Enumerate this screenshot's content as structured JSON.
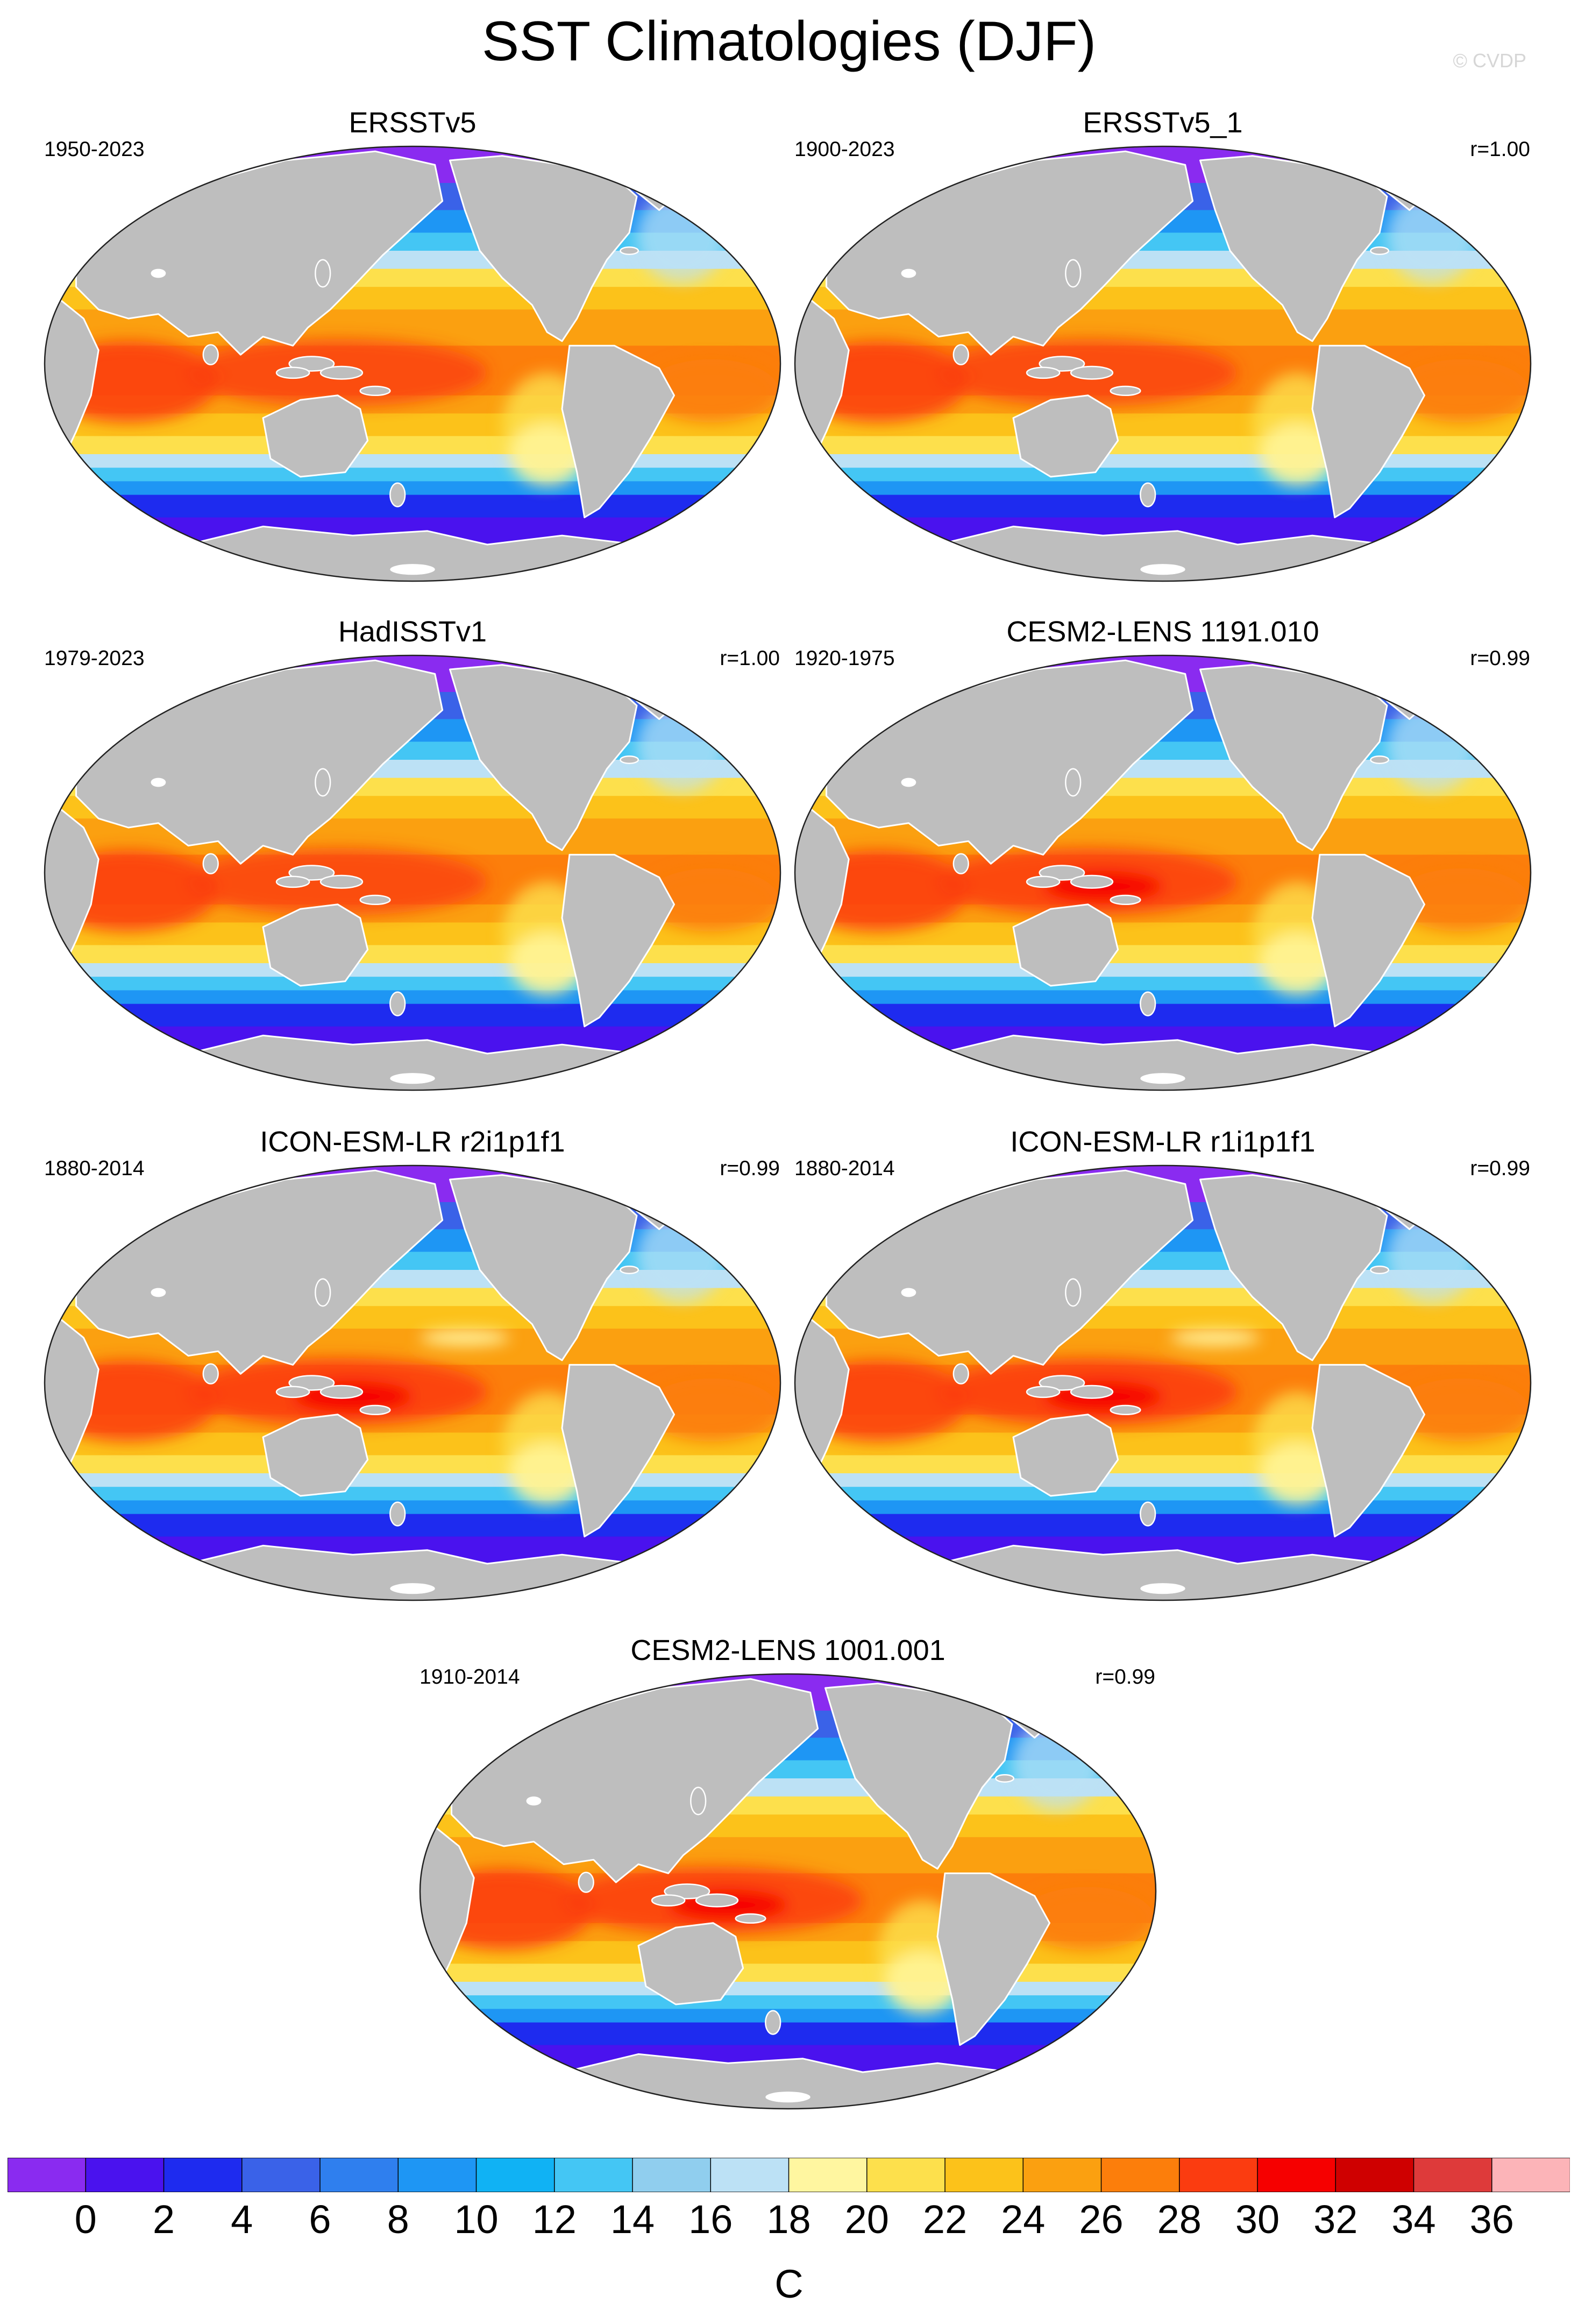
{
  "figure": {
    "title": "SST Climatologies (DJF)",
    "watermark": "© CVDP"
  },
  "panels": [
    {
      "name": "ERSSTv5",
      "period": "1950-2023",
      "correlation": "",
      "style": "obs",
      "warm_pool": 0.45,
      "east_tongue": 0.2
    },
    {
      "name": "ERSSTv5_1",
      "period": "1900-2023",
      "correlation": "r=1.00",
      "style": "obs",
      "warm_pool": 0.45,
      "east_tongue": 0.2
    },
    {
      "name": "HadISSTv1",
      "period": "1979-2023",
      "correlation": "r=1.00",
      "style": "obs",
      "warm_pool": 0.5,
      "east_tongue": 0.2
    },
    {
      "name": "CESM2-LENS 1191.010",
      "period": "1920-1975",
      "correlation": "r=0.99",
      "style": "model",
      "warm_pool": 0.7,
      "east_tongue": 0.3
    },
    {
      "name": "ICON-ESM-LR r2i1p1f1",
      "period": "1880-2014",
      "correlation": "r=0.99",
      "style": "icon",
      "warm_pool": 0.8,
      "east_tongue": 0.6
    },
    {
      "name": "ICON-ESM-LR r1i1p1f1",
      "period": "1880-2014",
      "correlation": "r=0.99",
      "style": "icon",
      "warm_pool": 0.8,
      "east_tongue": 0.6
    },
    {
      "name": "CESM2-LENS 1001.001",
      "period": "1910-2014",
      "correlation": "r=0.99",
      "style": "model",
      "warm_pool": 0.7,
      "east_tongue": 0.3
    }
  ],
  "colorbar": {
    "unit": "C",
    "tick_labels": [
      "0",
      "2",
      "4",
      "6",
      "8",
      "10",
      "12",
      "14",
      "16",
      "18",
      "20",
      "22",
      "24",
      "26",
      "28",
      "30",
      "32",
      "34",
      "36"
    ],
    "colors": [
      "#8A2BF0",
      "#4A12EE",
      "#1E2BEF",
      "#3A62E8",
      "#2F7FEE",
      "#1E96F4",
      "#10B2F4",
      "#44C6F4",
      "#90CEEE",
      "#BCE1F5",
      "#FFF6A0",
      "#FDE04C",
      "#FCC21A",
      "#FBA010",
      "#FC7E0B",
      "#FB3C10",
      "#F60000",
      "#CF0000",
      "#DE3A3A",
      "#FCB4B8"
    ]
  },
  "chart_data": {
    "type": "heatmap",
    "title": "SST Climatologies (DJF)",
    "variable": "sea surface temperature, Dec-Jan-Feb mean",
    "unit": "C",
    "projection": "Robinson, Pacific-centered",
    "color_levels": [
      0,
      2,
      4,
      6,
      8,
      10,
      12,
      14,
      16,
      18,
      20,
      22,
      24,
      26,
      28,
      30,
      32,
      34,
      36
    ],
    "panels": [
      {
        "name": "ERSSTv5",
        "period": "1950-2023",
        "r": ""
      },
      {
        "name": "ERSSTv5_1",
        "period": "1900-2023",
        "r": "1.00"
      },
      {
        "name": "HadISSTv1",
        "period": "1979-2023",
        "r": "1.00"
      },
      {
        "name": "CESM2-LENS 1191.010",
        "period": "1920-1975",
        "r": "0.99"
      },
      {
        "name": "ICON-ESM-LR r2i1p1f1",
        "period": "1880-2014",
        "r": "0.99"
      },
      {
        "name": "ICON-ESM-LR r1i1p1f1",
        "period": "1880-2014",
        "r": "0.99"
      },
      {
        "name": "CESM2-LENS 1001.001",
        "period": "1910-2014",
        "r": "0.99"
      }
    ]
  }
}
